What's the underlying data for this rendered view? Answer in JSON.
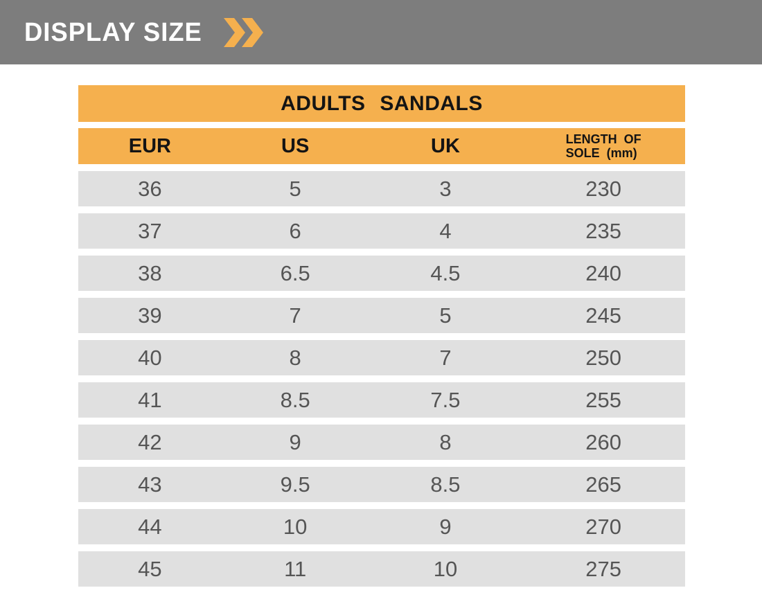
{
  "banner": {
    "title": "DISPLAY SIZE",
    "icon": "double-chevron-right"
  },
  "colors": {
    "banner_gray": "#7d7d7d",
    "accent": "#f5b04e",
    "row_gray": "#e0e0e0",
    "data_text": "#555555",
    "header_text": "#141414"
  },
  "table": {
    "title": "ADULTS SANDALS",
    "headers": [
      "EUR",
      "US",
      "UK",
      "LENGTH OF SOLE (mm)"
    ],
    "length_header": {
      "line1": "LENGTH OF",
      "line2": "SOLE (mm)"
    },
    "column_keys": [
      "eur",
      "us",
      "uk",
      "sole-length"
    ],
    "rows": [
      [
        "36",
        "5",
        "3",
        "230"
      ],
      [
        "37",
        "6",
        "4",
        "235"
      ],
      [
        "38",
        "6.5",
        "4.5",
        "240"
      ],
      [
        "39",
        "7",
        "5",
        "245"
      ],
      [
        "40",
        "8",
        "7",
        "250"
      ],
      [
        "41",
        "8.5",
        "7.5",
        "255"
      ],
      [
        "42",
        "9",
        "8",
        "260"
      ],
      [
        "43",
        "9.5",
        "8.5",
        "265"
      ],
      [
        "44",
        "10",
        "9",
        "270"
      ],
      [
        "45",
        "11",
        "10",
        "275"
      ]
    ]
  },
  "chart_data": {
    "type": "table",
    "title": "ADULTS SANDALS",
    "columns": [
      "EUR",
      "US",
      "UK",
      "LENGTH OF SOLE (mm)"
    ],
    "rows": [
      [
        "36",
        "5",
        "3",
        "230"
      ],
      [
        "37",
        "6",
        "4",
        "235"
      ],
      [
        "38",
        "6.5",
        "4.5",
        "240"
      ],
      [
        "39",
        "7",
        "5",
        "245"
      ],
      [
        "40",
        "8",
        "7",
        "250"
      ],
      [
        "41",
        "8.5",
        "7.5",
        "255"
      ],
      [
        "42",
        "9",
        "8",
        "260"
      ],
      [
        "43",
        "9.5",
        "8.5",
        "265"
      ],
      [
        "44",
        "10",
        "9",
        "270"
      ],
      [
        "45",
        "11",
        "10",
        "275"
      ]
    ]
  }
}
